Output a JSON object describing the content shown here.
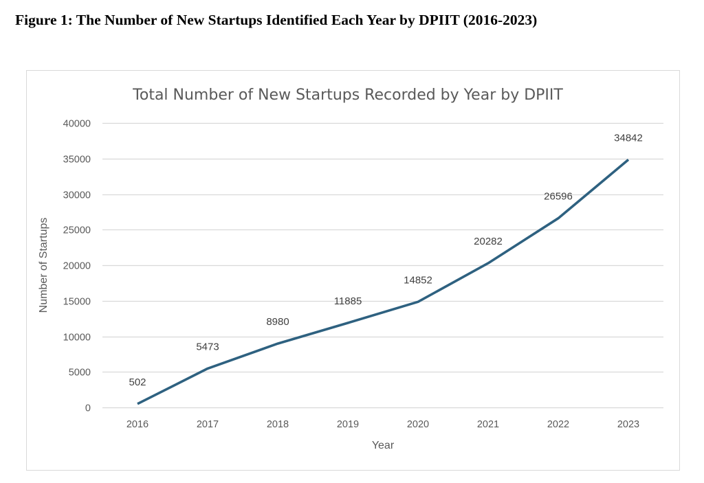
{
  "figure_caption": "Figure 1: The Number of New Startups Identified Each Year by DPIIT (2016-2023)",
  "chart_data": {
    "type": "line",
    "title": "Total Number of New Startups Recorded by Year by DPIIT",
    "xlabel": "Year",
    "ylabel": "Number of Startups",
    "categories": [
      "2016",
      "2017",
      "2018",
      "2019",
      "2020",
      "2021",
      "2022",
      "2023"
    ],
    "series": [
      {
        "name": "Number of Startups",
        "values": [
          502,
          5473,
          8980,
          11885,
          14852,
          20282,
          26596,
          34842
        ],
        "color": "#2E6180"
      }
    ],
    "data_labels": [
      "502",
      "5473",
      "8980",
      "11885",
      "14852",
      "20282",
      "26596",
      "34842"
    ],
    "ylim": [
      0,
      40000
    ],
    "yticks": [
      0,
      5000,
      10000,
      15000,
      20000,
      25000,
      30000,
      35000,
      40000
    ],
    "ytick_labels": [
      "0",
      "5000",
      "10000",
      "15000",
      "20000",
      "25000",
      "30000",
      "35000",
      "40000"
    ],
    "grid": true,
    "grid_color": "#d9d9d9",
    "legend": "none"
  }
}
